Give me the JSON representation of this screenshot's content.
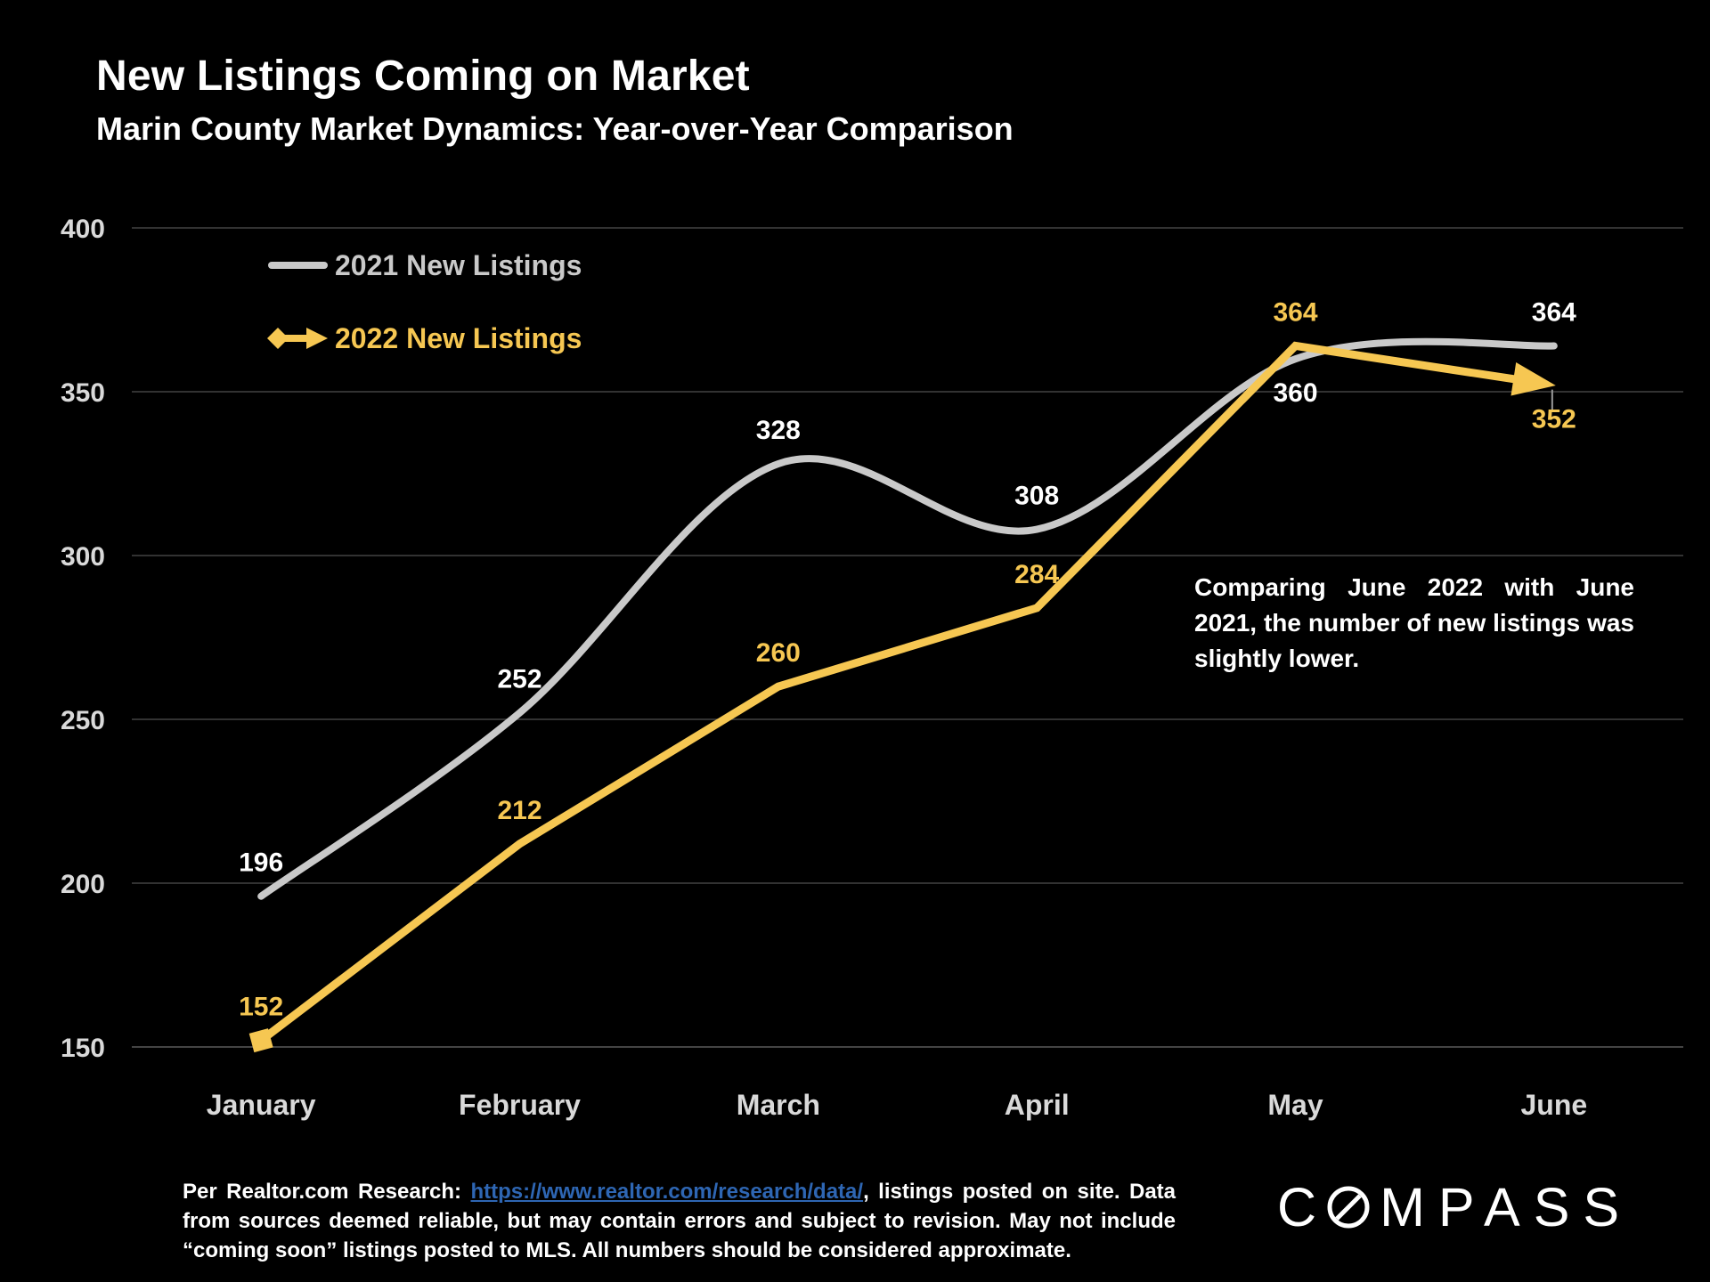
{
  "slide": {
    "title": "New Listings Coming on Market",
    "subtitle": "Marin County Market Dynamics: Year-over-Year Comparison",
    "footer": {
      "prefix": "Per Realtor.com Research: ",
      "link_text": "https://www.realtor.com/research/data/",
      "suffix": ", listings posted on site. Data from sources deemed reliable, but may contain errors and subject to revision. May not include “coming soon” listings posted to MLS. All numbers should be considered approximate.",
      "link_color": "#2E66B3"
    },
    "logo": {
      "text_c": "C",
      "text_rest": "MPASS"
    }
  },
  "chart_data": {
    "type": "line",
    "title": "New Listings Coming on Market",
    "subtitle": "Marin County Market Dynamics: Year-over-Year Comparison",
    "categories": [
      "January",
      "February",
      "March",
      "April",
      "May",
      "June"
    ],
    "series": [
      {
        "name": "2021 New Listings",
        "values": [
          196,
          252,
          328,
          308,
          360,
          364
        ],
        "color": "#C9C9C9",
        "label_color": "#FFFFFF",
        "smooth": true,
        "label_side": [
          "above",
          "above",
          "above",
          "above",
          "below",
          "above"
        ]
      },
      {
        "name": "2022 New Listings",
        "values": [
          152,
          212,
          260,
          284,
          364,
          352
        ],
        "color": "#F6C752",
        "label_color": "#F6C752",
        "smooth": false,
        "start_marker": "square",
        "end_marker": "arrow",
        "label_side": [
          "above",
          "above",
          "above",
          "above",
          "above",
          "below"
        ]
      }
    ],
    "ylim": [
      150,
      400
    ],
    "yticks": [
      150,
      200,
      250,
      300,
      350,
      400
    ],
    "xlabel": "",
    "ylabel": "",
    "grid": true,
    "legend_position": "inside-top-left",
    "annotation": "Comparing June 2022 with June 2021, the number of new listings was slightly lower."
  }
}
